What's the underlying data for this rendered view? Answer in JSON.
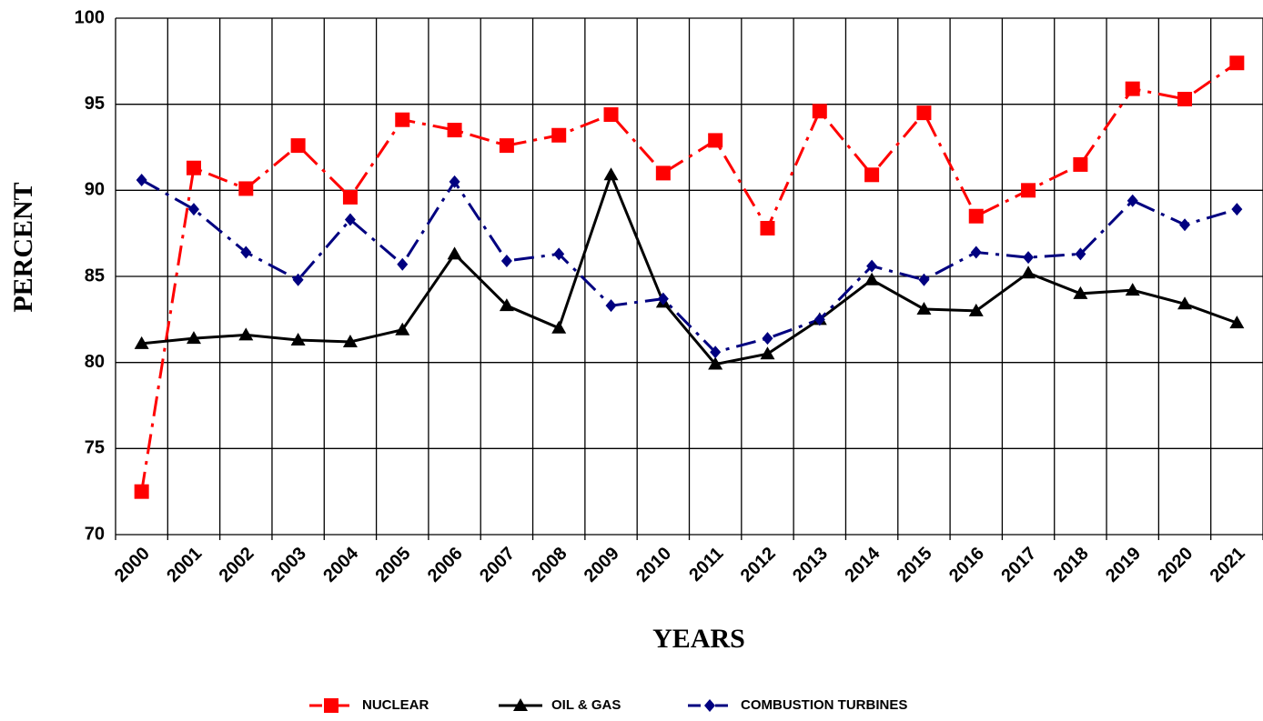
{
  "chart_data": {
    "type": "line",
    "x_label": "YEARS",
    "y_label": "PERCENT",
    "categories": [
      "2000",
      "2001",
      "2002",
      "2003",
      "2004",
      "2005",
      "2006",
      "2007",
      "2008",
      "2009",
      "2010",
      "2011",
      "2012",
      "2013",
      "2014",
      "2015",
      "2016",
      "2017",
      "2018",
      "2019",
      "2020",
      "2021"
    ],
    "ylim": [
      70,
      100
    ],
    "yticks": [
      70,
      75,
      80,
      85,
      90,
      95,
      100
    ],
    "grid": true,
    "legend": "bottom",
    "series": [
      {
        "name": "NUCLEAR",
        "color": "#ff0000",
        "marker": "square",
        "line_style": "dashdot",
        "values": [
          72.5,
          91.3,
          90.1,
          92.6,
          89.6,
          94.1,
          93.5,
          92.6,
          93.2,
          94.4,
          91.0,
          92.9,
          87.8,
          94.6,
          90.9,
          94.5,
          88.5,
          90.0,
          91.5,
          95.9,
          95.3,
          97.4
        ]
      },
      {
        "name": "OIL & GAS",
        "color": "#000000",
        "marker": "triangle",
        "line_style": "solid",
        "values": [
          81.1,
          81.4,
          81.6,
          81.3,
          81.2,
          81.9,
          86.3,
          83.3,
          82.0,
          90.9,
          83.5,
          79.9,
          80.5,
          82.5,
          84.8,
          83.1,
          83.0,
          85.2,
          84.0,
          84.2,
          83.4,
          82.3
        ]
      },
      {
        "name": "COMBUSTION TURBINES",
        "color": "#000080",
        "marker": "diamond",
        "line_style": "dashdot",
        "values": [
          90.6,
          88.9,
          86.4,
          84.8,
          88.3,
          85.7,
          90.5,
          85.9,
          86.3,
          83.3,
          83.7,
          80.6,
          81.4,
          82.5,
          85.6,
          84.8,
          86.4,
          86.1,
          86.3,
          89.4,
          88.0,
          88.9
        ]
      }
    ]
  }
}
